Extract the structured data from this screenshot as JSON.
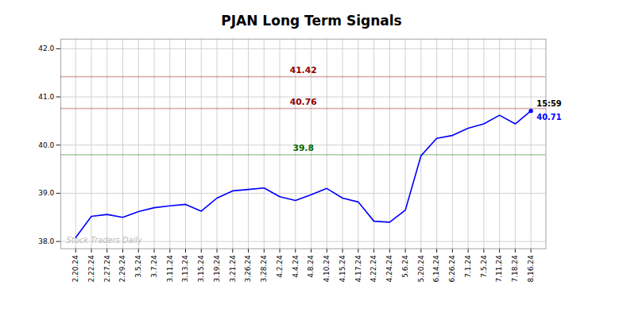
{
  "chart_data": {
    "type": "line",
    "title": "PJAN Long Term Signals",
    "categories": [
      "2.20.24",
      "2.22.24",
      "2.27.24",
      "2.29.24",
      "3.5.24",
      "3.7.24",
      "3.11.24",
      "3.13.24",
      "3.15.24",
      "3.19.24",
      "3.21.24",
      "3.26.24",
      "3.28.24",
      "4.2.24",
      "4.4.24",
      "4.8.24",
      "4.10.24",
      "4.15.24",
      "4.17.24",
      "4.22.24",
      "4.24.24",
      "5.6.24",
      "5.20.24",
      "6.14.24",
      "6.26.24",
      "7.1.24",
      "7.5.24",
      "7.11.24",
      "7.18.24",
      "8.16.24"
    ],
    "values": [
      38.08,
      38.52,
      38.56,
      38.5,
      38.62,
      38.7,
      38.74,
      38.77,
      38.63,
      38.9,
      39.05,
      39.08,
      39.11,
      38.93,
      38.85,
      38.97,
      39.1,
      38.9,
      38.82,
      38.42,
      38.4,
      38.65,
      39.78,
      40.14,
      40.2,
      40.35,
      40.44,
      40.62,
      40.44,
      40.71
    ],
    "color": "blue",
    "ylim": [
      37.85,
      42.2
    ],
    "yticks": [
      38,
      39,
      40,
      41,
      42
    ],
    "grid": true,
    "hlines": [
      {
        "value": 41.42,
        "label": "41.42",
        "color": "#8b0000"
      },
      {
        "value": 40.76,
        "label": "40.76",
        "color": "#8b0000"
      },
      {
        "value": 39.8,
        "label": "39.8",
        "color": "#006600"
      }
    ],
    "annotations": [
      {
        "x": "8.16.24",
        "y": 40.71,
        "text": "15:59"
      },
      {
        "x": "8.16.24",
        "y": 40.71,
        "text": "40.71"
      },
      {
        "text": "Stock Traders Daily"
      }
    ]
  }
}
